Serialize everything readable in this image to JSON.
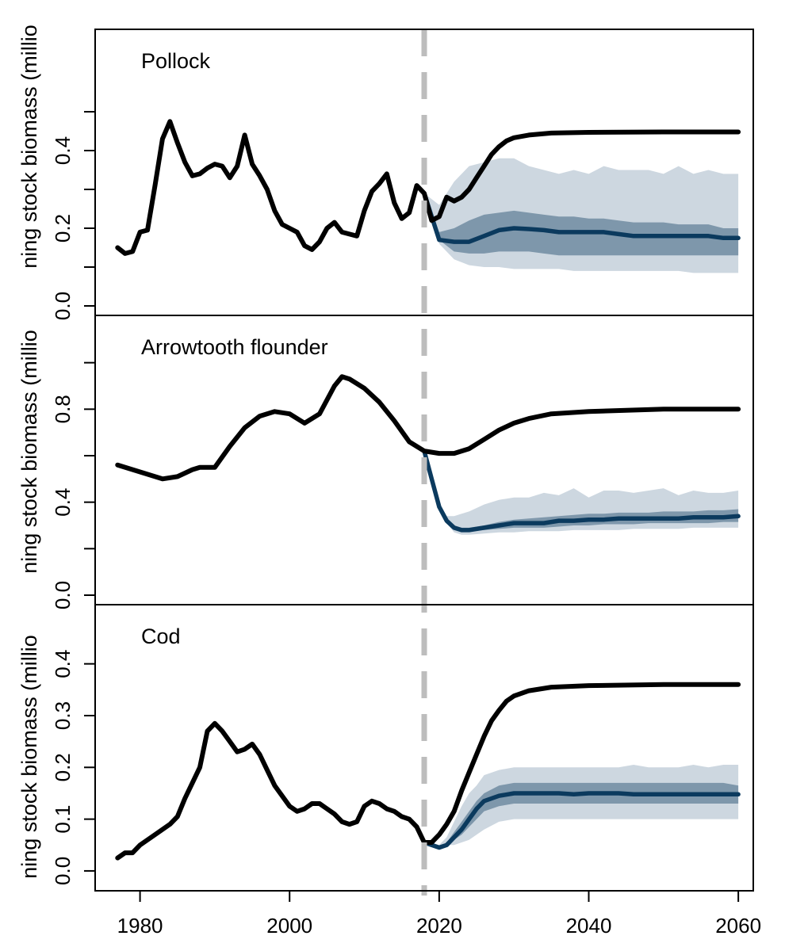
{
  "chart_data": {
    "type": "line",
    "xlim": [
      1974,
      2062
    ],
    "x_ticks": [
      1980,
      2000,
      2020,
      2040,
      2060
    ],
    "x_tick_labels": [
      "1980",
      "2000",
      "2020",
      "2040",
      "2060"
    ],
    "ylabel": "ning stock biomass (millio",
    "projection_start_year": 2018,
    "colors": {
      "historical": "#000000",
      "median": "#0b3a5e",
      "band_outer": "#cdd7e0",
      "band_inner": "#7e97ab",
      "divider": "#bdbdbd"
    },
    "panels": [
      {
        "title": "Pollock",
        "ylim": [
          0,
          0.6
        ],
        "y_ticks": [
          0,
          0.2,
          0.4
        ],
        "y_tick_labels": [
          "0.0",
          "0.2",
          "0.4"
        ],
        "historical": {
          "x": [
            1977,
            1978,
            1979,
            1980,
            1981,
            1982,
            1983,
            1984,
            1985,
            1986,
            1987,
            1988,
            1989,
            1990,
            1991,
            1992,
            1993,
            1994,
            1995,
            1996,
            1997,
            1998,
            1999,
            2000,
            2001,
            2002,
            2003,
            2004,
            2005,
            2006,
            2007,
            2008,
            2009,
            2010,
            2011,
            2012,
            2013,
            2014,
            2015,
            2016,
            2017,
            2018,
            2019,
            2020,
            2021,
            2022,
            2023,
            2024,
            2025,
            2026,
            2027,
            2028,
            2029,
            2030,
            2032,
            2035,
            2040,
            2050,
            2060
          ],
          "y": [
            0.15,
            0.135,
            0.14,
            0.19,
            0.195,
            0.31,
            0.43,
            0.475,
            0.42,
            0.37,
            0.335,
            0.34,
            0.355,
            0.365,
            0.36,
            0.33,
            0.36,
            0.44,
            0.365,
            0.335,
            0.3,
            0.245,
            0.21,
            0.2,
            0.19,
            0.155,
            0.145,
            0.165,
            0.2,
            0.215,
            0.19,
            0.185,
            0.18,
            0.245,
            0.295,
            0.315,
            0.34,
            0.265,
            0.225,
            0.24,
            0.31,
            0.29,
            0.22,
            0.23,
            0.28,
            0.27,
            0.28,
            0.3,
            0.33,
            0.36,
            0.39,
            0.41,
            0.425,
            0.433,
            0.44,
            0.445,
            0.447,
            0.448,
            0.448
          ]
        },
        "projection": {
          "x": [
            2018,
            2020,
            2022,
            2024,
            2026,
            2028,
            2030,
            2032,
            2034,
            2036,
            2038,
            2040,
            2042,
            2044,
            2046,
            2048,
            2050,
            2052,
            2054,
            2056,
            2058,
            2060
          ],
          "median": [
            0.29,
            0.17,
            0.165,
            0.165,
            0.18,
            0.195,
            0.2,
            0.198,
            0.195,
            0.19,
            0.19,
            0.19,
            0.19,
            0.185,
            0.18,
            0.18,
            0.18,
            0.18,
            0.18,
            0.18,
            0.175,
            0.175
          ],
          "inner_low": [
            0.29,
            0.17,
            0.14,
            0.135,
            0.135,
            0.14,
            0.14,
            0.14,
            0.135,
            0.13,
            0.13,
            0.13,
            0.13,
            0.13,
            0.13,
            0.13,
            0.13,
            0.13,
            0.13,
            0.13,
            0.13,
            0.13
          ],
          "inner_high": [
            0.29,
            0.19,
            0.2,
            0.22,
            0.235,
            0.24,
            0.245,
            0.24,
            0.235,
            0.23,
            0.23,
            0.225,
            0.225,
            0.22,
            0.215,
            0.215,
            0.215,
            0.21,
            0.21,
            0.21,
            0.2,
            0.2
          ],
          "outer_low": [
            0.29,
            0.16,
            0.12,
            0.105,
            0.1,
            0.1,
            0.095,
            0.095,
            0.095,
            0.095,
            0.09,
            0.09,
            0.09,
            0.09,
            0.09,
            0.09,
            0.09,
            0.09,
            0.085,
            0.085,
            0.085,
            0.085
          ],
          "outer_high": [
            0.29,
            0.26,
            0.32,
            0.36,
            0.37,
            0.38,
            0.38,
            0.36,
            0.35,
            0.34,
            0.35,
            0.34,
            0.36,
            0.35,
            0.35,
            0.35,
            0.34,
            0.36,
            0.34,
            0.35,
            0.34,
            0.34
          ]
        }
      },
      {
        "title": "Arrowtooth flounder",
        "ylim": [
          0,
          1.05
        ],
        "y_ticks": [
          0,
          0.4,
          0.8
        ],
        "y_tick_labels": [
          "0.0",
          "0.4",
          "0.8"
        ],
        "historical": {
          "x": [
            1977,
            1980,
            1983,
            1985,
            1987,
            1988,
            1990,
            1992,
            1994,
            1996,
            1998,
            2000,
            2002,
            2004,
            2006,
            2007,
            2008,
            2010,
            2012,
            2014,
            2016,
            2018,
            2020,
            2022,
            2024,
            2026,
            2028,
            2030,
            2032,
            2035,
            2040,
            2050,
            2060
          ],
          "y": [
            0.56,
            0.53,
            0.5,
            0.51,
            0.54,
            0.55,
            0.55,
            0.64,
            0.72,
            0.77,
            0.79,
            0.78,
            0.74,
            0.78,
            0.9,
            0.94,
            0.93,
            0.89,
            0.83,
            0.75,
            0.66,
            0.62,
            0.61,
            0.61,
            0.63,
            0.67,
            0.71,
            0.74,
            0.76,
            0.78,
            0.79,
            0.8,
            0.8
          ]
        },
        "projection": {
          "x": [
            2018,
            2019,
            2020,
            2021,
            2022,
            2023,
            2024,
            2026,
            2028,
            2030,
            2032,
            2034,
            2036,
            2038,
            2040,
            2042,
            2044,
            2046,
            2048,
            2050,
            2052,
            2054,
            2056,
            2058,
            2060
          ],
          "median": [
            0.62,
            0.5,
            0.38,
            0.32,
            0.29,
            0.28,
            0.28,
            0.29,
            0.3,
            0.31,
            0.31,
            0.31,
            0.32,
            0.32,
            0.325,
            0.325,
            0.33,
            0.33,
            0.33,
            0.33,
            0.33,
            0.335,
            0.335,
            0.335,
            0.34
          ],
          "inner_low": [
            0.62,
            0.5,
            0.38,
            0.31,
            0.28,
            0.275,
            0.275,
            0.28,
            0.285,
            0.29,
            0.29,
            0.29,
            0.295,
            0.3,
            0.3,
            0.305,
            0.305,
            0.305,
            0.31,
            0.31,
            0.31,
            0.31,
            0.31,
            0.315,
            0.315
          ],
          "inner_high": [
            0.62,
            0.5,
            0.38,
            0.33,
            0.3,
            0.29,
            0.29,
            0.3,
            0.315,
            0.325,
            0.33,
            0.335,
            0.34,
            0.345,
            0.35,
            0.35,
            0.355,
            0.355,
            0.355,
            0.36,
            0.36,
            0.36,
            0.365,
            0.365,
            0.37
          ],
          "outer_low": [
            0.62,
            0.5,
            0.38,
            0.31,
            0.27,
            0.26,
            0.26,
            0.265,
            0.27,
            0.27,
            0.275,
            0.275,
            0.275,
            0.28,
            0.28,
            0.28,
            0.28,
            0.285,
            0.285,
            0.285,
            0.285,
            0.29,
            0.29,
            0.29,
            0.29
          ],
          "outer_high": [
            0.62,
            0.5,
            0.38,
            0.34,
            0.34,
            0.35,
            0.36,
            0.39,
            0.41,
            0.42,
            0.42,
            0.44,
            0.43,
            0.46,
            0.42,
            0.45,
            0.45,
            0.44,
            0.45,
            0.46,
            0.43,
            0.45,
            0.44,
            0.44,
            0.45
          ]
        }
      },
      {
        "title": "Cod",
        "ylim": [
          -0.02,
          0.45
        ],
        "y_ticks": [
          0,
          0.1,
          0.2,
          0.3,
          0.4
        ],
        "y_tick_labels": [
          "0.0",
          "0.1",
          "0.2",
          "0.3",
          "0.4"
        ],
        "historical": {
          "x": [
            1977,
            1978,
            1979,
            1980,
            1982,
            1984,
            1985,
            1986,
            1987,
            1988,
            1989,
            1990,
            1991,
            1992,
            1993,
            1994,
            1995,
            1996,
            1997,
            1998,
            1999,
            2000,
            2001,
            2002,
            2003,
            2004,
            2005,
            2006,
            2007,
            2008,
            2009,
            2010,
            2011,
            2012,
            2013,
            2014,
            2015,
            2016,
            2017,
            2018,
            2019,
            2020,
            2021,
            2022,
            2023,
            2024,
            2025,
            2026,
            2027,
            2028,
            2029,
            2030,
            2032,
            2035,
            2040,
            2050,
            2060
          ],
          "y": [
            0.025,
            0.035,
            0.035,
            0.05,
            0.07,
            0.09,
            0.105,
            0.14,
            0.17,
            0.2,
            0.27,
            0.285,
            0.27,
            0.25,
            0.23,
            0.235,
            0.245,
            0.225,
            0.195,
            0.165,
            0.145,
            0.125,
            0.115,
            0.12,
            0.13,
            0.13,
            0.12,
            0.11,
            0.095,
            0.09,
            0.095,
            0.125,
            0.135,
            0.13,
            0.12,
            0.115,
            0.105,
            0.1,
            0.085,
            0.055,
            0.055,
            0.07,
            0.09,
            0.115,
            0.155,
            0.19,
            0.225,
            0.26,
            0.29,
            0.31,
            0.328,
            0.338,
            0.348,
            0.355,
            0.358,
            0.36,
            0.36
          ]
        },
        "projection": {
          "x": [
            2018,
            2020,
            2021,
            2022,
            2023,
            2024,
            2025,
            2026,
            2028,
            2030,
            2032,
            2034,
            2036,
            2038,
            2040,
            2042,
            2044,
            2046,
            2048,
            2050,
            2052,
            2054,
            2056,
            2058,
            2060
          ],
          "median": [
            0.055,
            0.045,
            0.05,
            0.065,
            0.08,
            0.1,
            0.12,
            0.135,
            0.145,
            0.15,
            0.15,
            0.15,
            0.15,
            0.148,
            0.15,
            0.15,
            0.15,
            0.148,
            0.148,
            0.148,
            0.148,
            0.148,
            0.148,
            0.148,
            0.148
          ],
          "inner_low": [
            0.055,
            0.045,
            0.05,
            0.06,
            0.07,
            0.085,
            0.1,
            0.115,
            0.125,
            0.13,
            0.13,
            0.13,
            0.13,
            0.13,
            0.13,
            0.13,
            0.13,
            0.13,
            0.13,
            0.13,
            0.13,
            0.13,
            0.13,
            0.13,
            0.13
          ],
          "inner_high": [
            0.055,
            0.045,
            0.055,
            0.075,
            0.095,
            0.115,
            0.135,
            0.15,
            0.165,
            0.17,
            0.17,
            0.17,
            0.17,
            0.17,
            0.17,
            0.17,
            0.17,
            0.17,
            0.17,
            0.17,
            0.17,
            0.17,
            0.17,
            0.17,
            0.165
          ],
          "outer_low": [
            0.055,
            0.045,
            0.05,
            0.05,
            0.055,
            0.06,
            0.07,
            0.08,
            0.095,
            0.1,
            0.1,
            0.1,
            0.1,
            0.1,
            0.1,
            0.1,
            0.1,
            0.1,
            0.1,
            0.1,
            0.1,
            0.1,
            0.1,
            0.1,
            0.1
          ],
          "outer_high": [
            0.055,
            0.05,
            0.065,
            0.095,
            0.125,
            0.15,
            0.165,
            0.185,
            0.195,
            0.2,
            0.2,
            0.2,
            0.2,
            0.2,
            0.2,
            0.2,
            0.2,
            0.205,
            0.2,
            0.2,
            0.2,
            0.205,
            0.2,
            0.205,
            0.205
          ]
        }
      }
    ]
  }
}
